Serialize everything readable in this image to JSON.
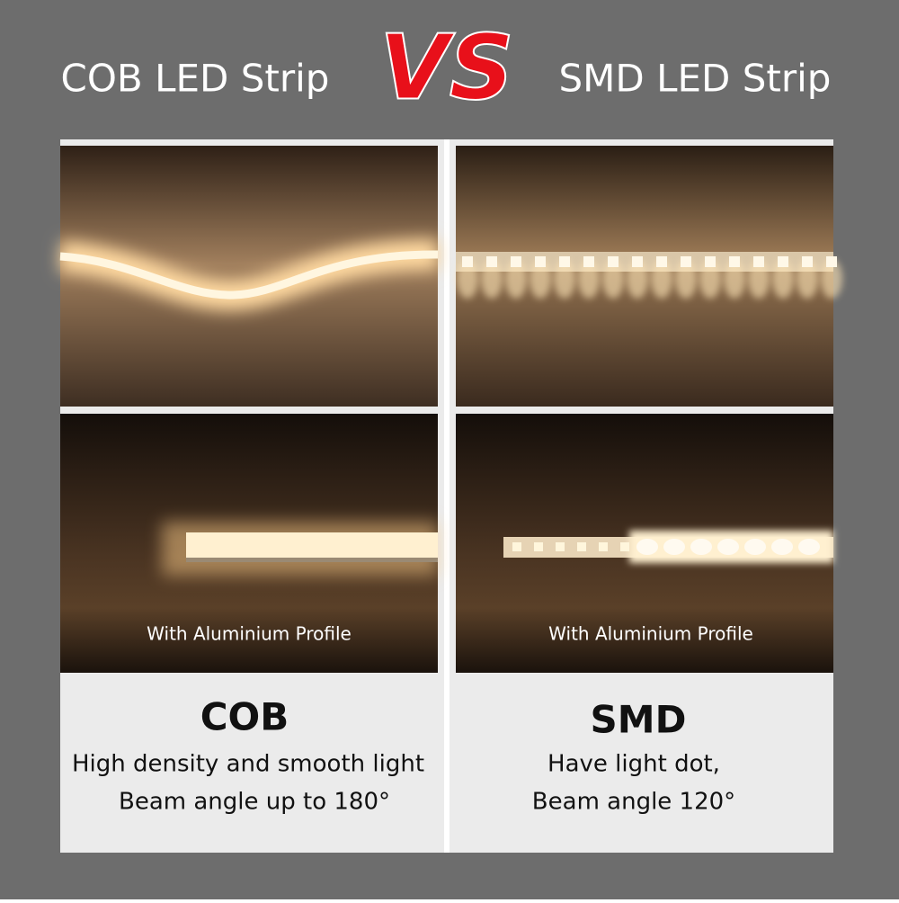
{
  "header": {
    "left_title": "COB LED Strip",
    "vs": "VS",
    "right_title": "SMD LED Strip"
  },
  "panels": [
    {
      "photo_caption": "With Aluminium Profile",
      "name": "COB",
      "lines": [
        "High density and smooth light",
        "Beam angle up to 180°"
      ]
    },
    {
      "photo_caption": "With Aluminium Profile",
      "name": "SMD",
      "lines": [
        "Have light dot,",
        "Beam angle 120°"
      ]
    }
  ]
}
